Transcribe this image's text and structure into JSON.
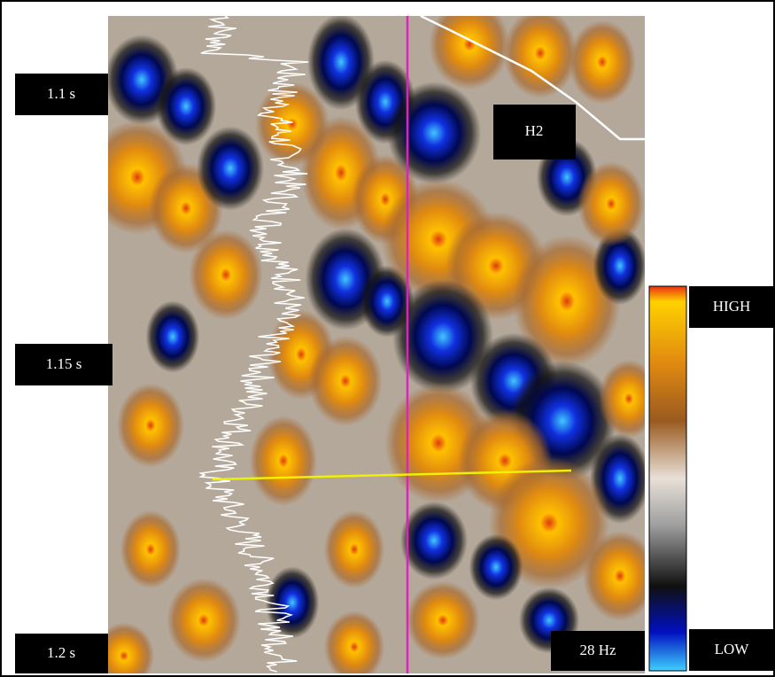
{
  "time_labels": [
    "1.1 s",
    "1.15 s",
    "1.2 s"
  ],
  "horizon_label": "H2",
  "colorbar": {
    "high": "HIGH",
    "low": "LOW"
  },
  "frequency_label": "28 Hz"
}
